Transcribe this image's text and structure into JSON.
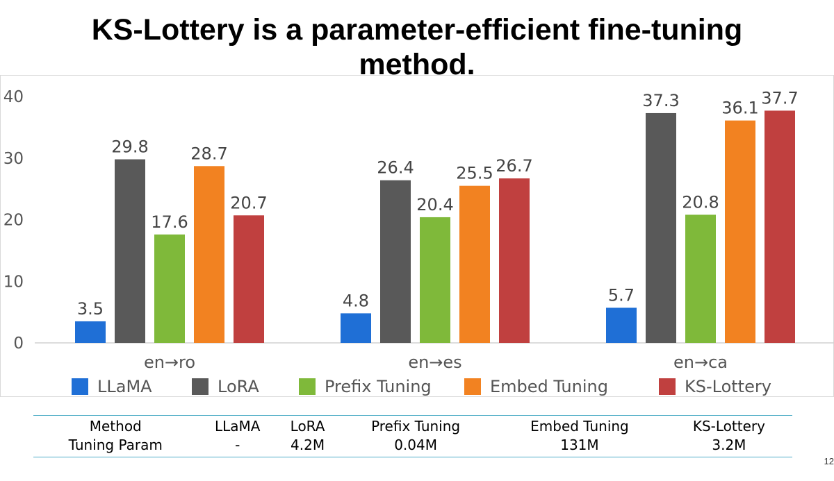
{
  "slide": {
    "title_line1": "KS-Lottery is a parameter-efficient fine-tuning",
    "title_line2": "method.",
    "page_number": "12"
  },
  "chart_data": {
    "type": "bar",
    "categories": [
      "en→ro",
      "en→es",
      "en→ca"
    ],
    "series": [
      {
        "name": "LLaMA",
        "color": "#1f6fd6",
        "values": [
          3.5,
          4.8,
          5.7
        ]
      },
      {
        "name": "LoRA",
        "color": "#595959",
        "values": [
          29.8,
          26.4,
          37.3
        ]
      },
      {
        "name": "Prefix Tuning",
        "color": "#7fb93a",
        "values": [
          17.6,
          20.4,
          20.8
        ]
      },
      {
        "name": "Embed Tuning",
        "color": "#f28221",
        "values": [
          28.7,
          25.5,
          36.1
        ]
      },
      {
        "name": "KS-Lottery",
        "color": "#c0403f",
        "values": [
          20.7,
          26.7,
          37.7
        ]
      }
    ],
    "yticks": [
      "0",
      "10",
      "20",
      "30",
      "40"
    ],
    "ylim": [
      0,
      40
    ],
    "title": "",
    "xlabel": "",
    "ylabel": "",
    "legend": "bottom"
  },
  "param_table": {
    "header": [
      "Method",
      "LLaMA",
      "LoRA",
      "Prefix Tuning",
      "Embed Tuning",
      "KS-Lottery"
    ],
    "row": [
      "Tuning Param",
      "-",
      "4.2M",
      "0.04M",
      "131M",
      "3.2M"
    ]
  }
}
